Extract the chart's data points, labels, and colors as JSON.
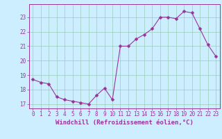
{
  "x": [
    0,
    1,
    2,
    3,
    4,
    5,
    6,
    7,
    8,
    9,
    10,
    11,
    12,
    13,
    14,
    15,
    16,
    17,
    18,
    19,
    20,
    21,
    22,
    23
  ],
  "y": [
    18.7,
    18.5,
    18.4,
    17.5,
    17.3,
    17.2,
    17.1,
    17.0,
    17.6,
    18.1,
    17.3,
    21.0,
    21.0,
    21.5,
    21.8,
    22.2,
    23.0,
    23.0,
    22.9,
    23.4,
    23.3,
    22.2,
    21.1,
    20.3
  ],
  "line_color": "#993399",
  "marker": "D",
  "marker_size": 2.5,
  "bg_color": "#cceeff",
  "grid_color": "#99ccbb",
  "xlabel": "Windchill (Refroidissement éolien,°C)",
  "ylim": [
    16.7,
    23.9
  ],
  "xlim": [
    -0.5,
    23.5
  ],
  "yticks": [
    17,
    18,
    19,
    20,
    21,
    22,
    23
  ],
  "xticks": [
    0,
    1,
    2,
    3,
    4,
    5,
    6,
    7,
    8,
    9,
    10,
    11,
    12,
    13,
    14,
    15,
    16,
    17,
    18,
    19,
    20,
    21,
    22,
    23
  ],
  "tick_color": "#993399",
  "label_color": "#993399",
  "tick_fontsize": 5.5,
  "xlabel_fontsize": 6.5
}
